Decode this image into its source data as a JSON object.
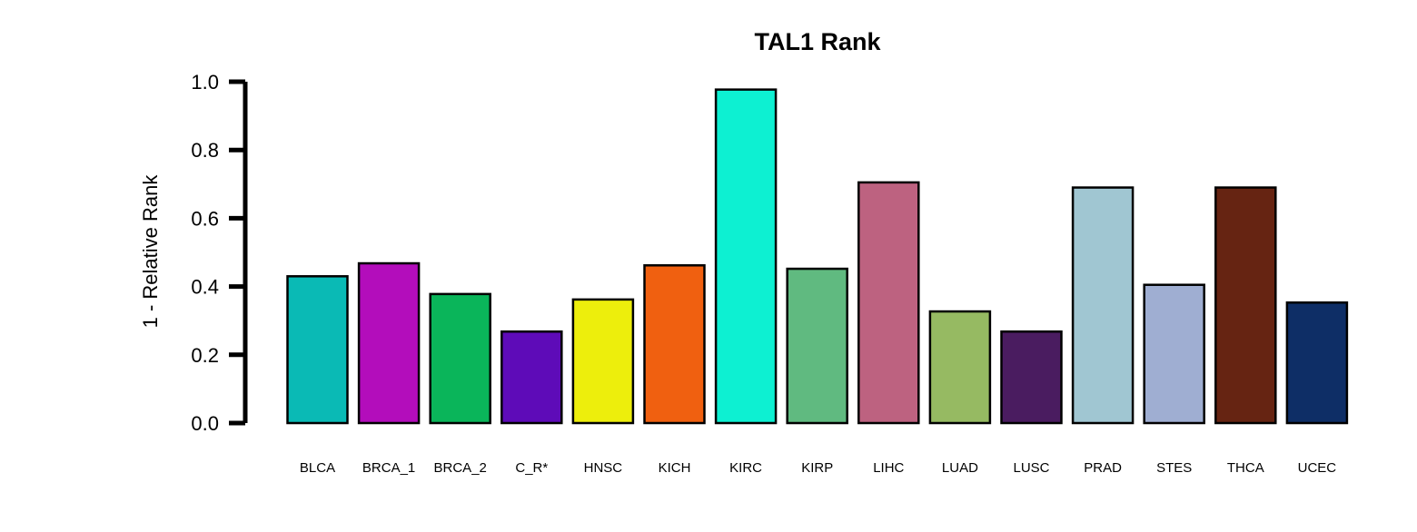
{
  "chart_data": {
    "type": "bar",
    "title": "TAL1 Rank",
    "xlabel": "",
    "ylabel": "1 - Relative Rank",
    "ylim": [
      0,
      1.0
    ],
    "yticks": [
      "0.0",
      "0.2",
      "0.4",
      "0.6",
      "0.8",
      "1.0"
    ],
    "grid": false,
    "legend": "none",
    "categories": [
      "BLCA",
      "BRCA_1",
      "BRCA_2",
      "C_R*",
      "HNSC",
      "KICH",
      "KIRC",
      "KIRP",
      "LIHC",
      "LUAD",
      "LUSC",
      "PRAD",
      "STES",
      "THCA",
      "UCEC"
    ],
    "values": [
      0.43,
      0.468,
      0.378,
      0.268,
      0.362,
      0.462,
      0.977,
      0.452,
      0.705,
      0.327,
      0.268,
      0.69,
      0.405,
      0.69,
      0.353
    ],
    "colors": [
      "#0ABAB5",
      "#B30DBB",
      "#0AB55A",
      "#5E0BB8",
      "#EDEE0C",
      "#F06010",
      "#0DF0D2",
      "#60BA80",
      "#BD6280",
      "#96BA62",
      "#4A1C60",
      "#A0C6D2",
      "#9FAED2",
      "#662412",
      "#0E2E66"
    ]
  }
}
